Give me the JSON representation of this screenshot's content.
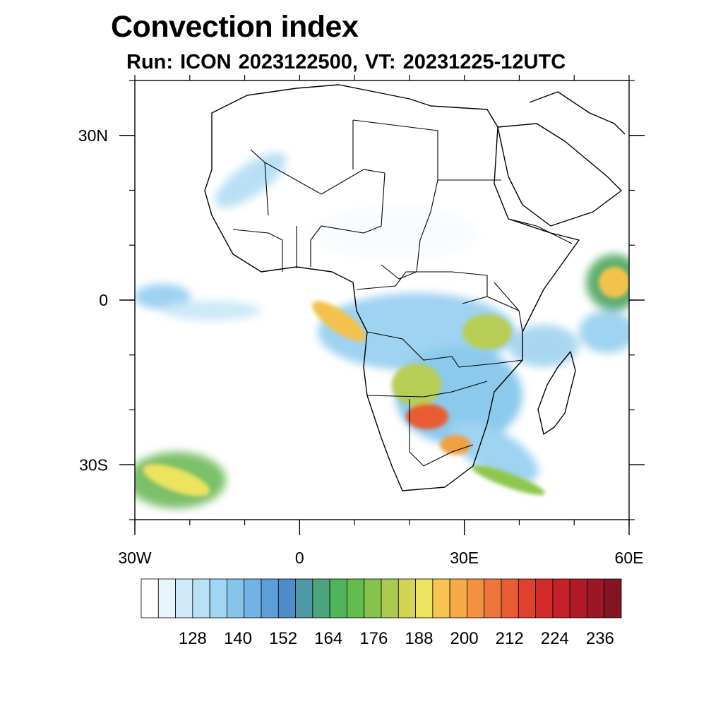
{
  "title": "Convection index",
  "subtitle": "Run: ICON 2023122500,  VT: 20231225-12UTC",
  "map": {
    "region": "Africa",
    "lon_range": [
      -30,
      60
    ],
    "lat_range": [
      -40,
      40
    ],
    "x_ticks": [
      {
        "value": -30,
        "label": "30W"
      },
      {
        "value": 0,
        "label": "0"
      },
      {
        "value": 30,
        "label": "30E"
      },
      {
        "value": 60,
        "label": "60E"
      }
    ],
    "y_ticks": [
      {
        "value": 30,
        "label": "30N"
      },
      {
        "value": 0,
        "label": "0"
      },
      {
        "value": -30,
        "label": "30S"
      }
    ]
  },
  "colorbar": {
    "labels": [
      "128",
      "140",
      "152",
      "164",
      "176",
      "188",
      "200",
      "212",
      "224",
      "236"
    ],
    "colors": [
      "#ffffff",
      "#e8f5fc",
      "#cfe9f8",
      "#b8e1f5",
      "#9ed6f3",
      "#87c4ec",
      "#72b2e4",
      "#5e9ed8",
      "#4c8cc8",
      "#4c98a4",
      "#4ca67d",
      "#4fb55c",
      "#62bd4c",
      "#86c34d",
      "#acca50",
      "#d3d456",
      "#ece35e",
      "#f6c44f",
      "#f5aa45",
      "#f3913e",
      "#ee763a",
      "#e85c32",
      "#e0412c",
      "#d52a2a",
      "#c51f29",
      "#b01a27",
      "#9c1725",
      "#861321"
    ]
  }
}
